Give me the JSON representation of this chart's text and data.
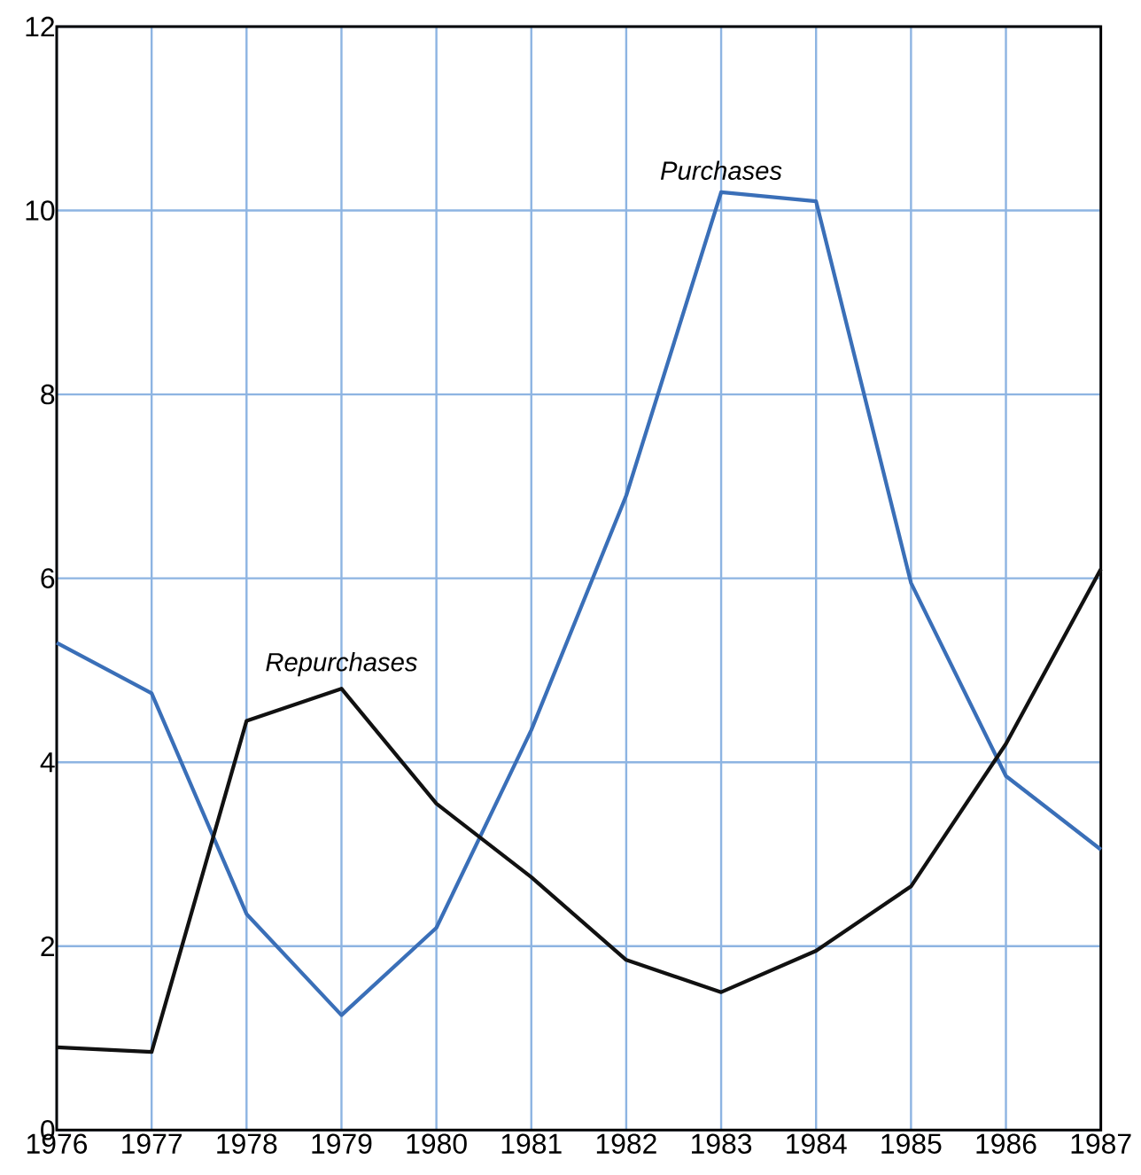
{
  "chart_data": {
    "type": "line",
    "x": [
      1976,
      1977,
      1978,
      1979,
      1980,
      1981,
      1982,
      1983,
      1984,
      1985,
      1986,
      1987
    ],
    "series": [
      {
        "name": "Purchases",
        "color": "#3a6fb8",
        "values": [
          5.3,
          4.75,
          2.35,
          1.25,
          2.2,
          4.35,
          6.9,
          10.2,
          10.1,
          5.95,
          3.85,
          3.05
        ]
      },
      {
        "name": "Repurchases",
        "color": "#111111",
        "values": [
          0.9,
          0.85,
          4.45,
          4.8,
          3.55,
          2.75,
          1.85,
          1.5,
          1.95,
          2.65,
          4.2,
          6.1
        ]
      }
    ],
    "xlim": [
      1976,
      1987
    ],
    "xticks": [
      1976,
      1977,
      1978,
      1979,
      1980,
      1981,
      1982,
      1983,
      1984,
      1985,
      1986,
      1987
    ],
    "ylim": [
      0,
      12
    ],
    "yticks": [
      0,
      2,
      4,
      6,
      8,
      10,
      12
    ],
    "grid": true,
    "marker": "none",
    "line_style": "solid"
  }
}
